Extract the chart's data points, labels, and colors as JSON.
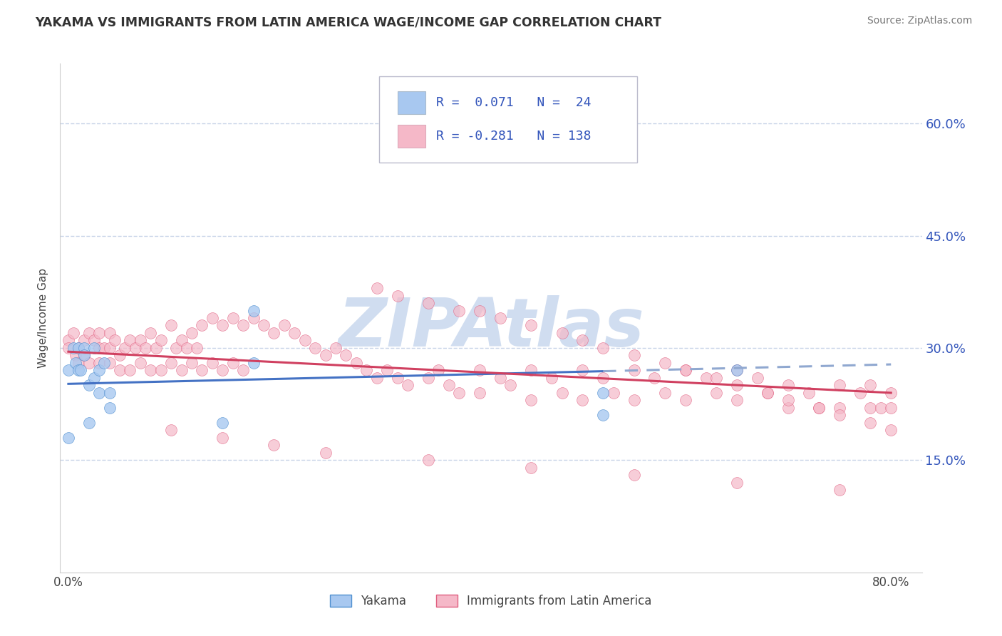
{
  "title": "YAKAMA VS IMMIGRANTS FROM LATIN AMERICA WAGE/INCOME GAP CORRELATION CHART",
  "source": "Source: ZipAtlas.com",
  "ylabel": "Wage/Income Gap",
  "yticks": [
    0.15,
    0.3,
    0.45,
    0.6
  ],
  "ytick_labels": [
    "15.0%",
    "30.0%",
    "45.0%",
    "60.0%"
  ],
  "xlim": [
    -0.008,
    0.83
  ],
  "ylim": [
    0.0,
    0.68
  ],
  "color_yakama_fill": "#a8c8f0",
  "color_yakama_edge": "#5090d0",
  "color_latin_fill": "#f5b8c8",
  "color_latin_edge": "#e06080",
  "color_trend_yakama": "#4472c4",
  "color_trend_latin": "#d04060",
  "color_trend_dashed": "#90a8d0",
  "watermark_color": "#d0ddf0",
  "background_color": "#ffffff",
  "title_color": "#333333",
  "axis_label_color": "#3355bb",
  "legend_text_color": "#3355bb",
  "grid_color": "#c8d4e8",
  "legend_label1": "Yakama",
  "legend_label2": "Immigrants from Latin America",
  "yakama_x": [
    0.0,
    0.0,
    0.005,
    0.007,
    0.01,
    0.01,
    0.012,
    0.015,
    0.015,
    0.02,
    0.02,
    0.025,
    0.025,
    0.03,
    0.03,
    0.035,
    0.04,
    0.04,
    0.15,
    0.18,
    0.18,
    0.52,
    0.52,
    0.65
  ],
  "yakama_y": [
    0.27,
    0.18,
    0.3,
    0.28,
    0.3,
    0.27,
    0.27,
    0.3,
    0.29,
    0.25,
    0.2,
    0.3,
    0.26,
    0.27,
    0.24,
    0.28,
    0.24,
    0.22,
    0.2,
    0.35,
    0.28,
    0.24,
    0.21,
    0.27
  ],
  "latin_x": [
    0.0,
    0.0,
    0.005,
    0.007,
    0.01,
    0.01,
    0.015,
    0.015,
    0.02,
    0.02,
    0.025,
    0.03,
    0.03,
    0.03,
    0.035,
    0.04,
    0.04,
    0.04,
    0.045,
    0.05,
    0.05,
    0.055,
    0.06,
    0.06,
    0.065,
    0.07,
    0.07,
    0.075,
    0.08,
    0.08,
    0.085,
    0.09,
    0.09,
    0.1,
    0.1,
    0.105,
    0.11,
    0.11,
    0.115,
    0.12,
    0.12,
    0.125,
    0.13,
    0.13,
    0.14,
    0.14,
    0.15,
    0.15,
    0.16,
    0.16,
    0.17,
    0.17,
    0.18,
    0.19,
    0.2,
    0.21,
    0.22,
    0.23,
    0.24,
    0.25,
    0.26,
    0.27,
    0.28,
    0.29,
    0.3,
    0.31,
    0.32,
    0.33,
    0.35,
    0.36,
    0.37,
    0.38,
    0.4,
    0.4,
    0.42,
    0.43,
    0.45,
    0.45,
    0.47,
    0.48,
    0.5,
    0.5,
    0.52,
    0.53,
    0.55,
    0.55,
    0.57,
    0.58,
    0.6,
    0.6,
    0.62,
    0.63,
    0.65,
    0.65,
    0.67,
    0.68,
    0.7,
    0.7,
    0.72,
    0.73,
    0.75,
    0.75,
    0.77,
    0.78,
    0.78,
    0.79,
    0.8,
    0.8,
    0.3,
    0.32,
    0.35,
    0.38,
    0.4,
    0.42,
    0.45,
    0.48,
    0.5,
    0.52,
    0.55,
    0.58,
    0.6,
    0.63,
    0.65,
    0.68,
    0.7,
    0.73,
    0.75,
    0.78,
    0.8,
    0.1,
    0.15,
    0.2,
    0.25,
    0.35,
    0.45,
    0.55,
    0.65,
    0.75
  ],
  "latin_y": [
    0.31,
    0.3,
    0.32,
    0.29,
    0.3,
    0.28,
    0.31,
    0.29,
    0.32,
    0.28,
    0.31,
    0.32,
    0.3,
    0.28,
    0.3,
    0.32,
    0.3,
    0.28,
    0.31,
    0.29,
    0.27,
    0.3,
    0.31,
    0.27,
    0.3,
    0.31,
    0.28,
    0.3,
    0.32,
    0.27,
    0.3,
    0.31,
    0.27,
    0.33,
    0.28,
    0.3,
    0.31,
    0.27,
    0.3,
    0.32,
    0.28,
    0.3,
    0.33,
    0.27,
    0.34,
    0.28,
    0.33,
    0.27,
    0.34,
    0.28,
    0.33,
    0.27,
    0.34,
    0.33,
    0.32,
    0.33,
    0.32,
    0.31,
    0.3,
    0.29,
    0.3,
    0.29,
    0.28,
    0.27,
    0.26,
    0.27,
    0.26,
    0.25,
    0.26,
    0.27,
    0.25,
    0.24,
    0.27,
    0.24,
    0.26,
    0.25,
    0.27,
    0.23,
    0.26,
    0.24,
    0.27,
    0.23,
    0.26,
    0.24,
    0.27,
    0.23,
    0.26,
    0.24,
    0.27,
    0.23,
    0.26,
    0.24,
    0.27,
    0.23,
    0.26,
    0.24,
    0.25,
    0.22,
    0.24,
    0.22,
    0.25,
    0.22,
    0.24,
    0.22,
    0.25,
    0.22,
    0.24,
    0.22,
    0.38,
    0.37,
    0.36,
    0.35,
    0.35,
    0.34,
    0.33,
    0.32,
    0.31,
    0.3,
    0.29,
    0.28,
    0.27,
    0.26,
    0.25,
    0.24,
    0.23,
    0.22,
    0.21,
    0.2,
    0.19,
    0.19,
    0.18,
    0.17,
    0.16,
    0.15,
    0.14,
    0.13,
    0.12,
    0.11
  ],
  "trend_yakama_x0": 0.0,
  "trend_yakama_y0": 0.252,
  "trend_yakama_x1": 0.8,
  "trend_yakama_y1": 0.278,
  "trend_yakama_solid_end": 0.52,
  "trend_latin_x0": 0.0,
  "trend_latin_y0": 0.295,
  "trend_latin_x1": 0.8,
  "trend_latin_y1": 0.24,
  "watermark_text": "ZIPAtlas",
  "watermark_fontsize": 68
}
